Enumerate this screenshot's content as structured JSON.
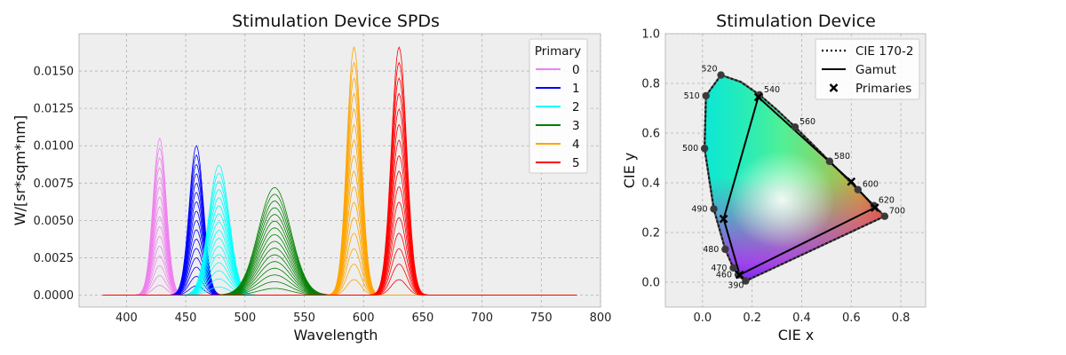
{
  "chart_data": [
    {
      "type": "line",
      "title": "Stimulation Device SPDs",
      "xlabel": "Wavelength",
      "ylabel": "W/[sr*sqm*nm]",
      "xlim": [
        360,
        800
      ],
      "ylim": [
        -0.0008,
        0.0175
      ],
      "xticks": [
        400,
        450,
        500,
        550,
        600,
        650,
        700,
        750,
        800
      ],
      "yticks": [
        0.0,
        0.0025,
        0.005,
        0.0075,
        0.01,
        0.0125,
        0.015
      ],
      "ytick_labels": [
        "0.0000",
        "0.0025",
        "0.0050",
        "0.0075",
        "0.0100",
        "0.0125",
        "0.0150"
      ],
      "grid": true,
      "legend": {
        "title": "Primary",
        "placement": "top-right"
      },
      "x_range": [
        380,
        780
      ],
      "levels_per_primary": 16,
      "series": [
        {
          "name": "0",
          "color": "#ee82ee",
          "peak_wavelength": 428,
          "peak_value": 0.0105,
          "fwhm": 13
        },
        {
          "name": "1",
          "color": "#0000ff",
          "peak_wavelength": 459,
          "peak_value": 0.01,
          "fwhm": 14
        },
        {
          "name": "2",
          "color": "#00ffff",
          "peak_wavelength": 478,
          "peak_value": 0.0087,
          "fwhm": 20
        },
        {
          "name": "3",
          "color": "#008000",
          "peak_wavelength": 525,
          "peak_value": 0.0072,
          "fwhm": 32
        },
        {
          "name": "4",
          "color": "#ffa500",
          "peak_wavelength": 592,
          "peak_value": 0.0166,
          "fwhm": 14
        },
        {
          "name": "5",
          "color": "#ff0000",
          "peak_wavelength": 630,
          "peak_value": 0.0166,
          "fwhm": 15
        }
      ]
    },
    {
      "type": "scatter",
      "title": "Stimulation Device",
      "xlabel": "CIE x",
      "ylabel": "CIE y",
      "xlim": [
        -0.15,
        0.9
      ],
      "ylim": [
        -0.1,
        1.0
      ],
      "xticks": [
        0.0,
        0.2,
        0.4,
        0.6,
        0.8
      ],
      "xtick_labels": [
        "0.0",
        "0.2",
        "0.4",
        "0.6",
        "0.8"
      ],
      "yticks": [
        0.0,
        0.2,
        0.4,
        0.6,
        0.8,
        1.0
      ],
      "ytick_labels": [
        "0.0",
        "0.2",
        "0.4",
        "0.6",
        "0.8",
        "1.0"
      ],
      "grid": true,
      "legend": {
        "placement": "top-right",
        "entries": [
          "CIE 170-2",
          "Gamut",
          "Primaries"
        ]
      },
      "spectral_locus": [
        [
          0.1741,
          0.005
        ],
        [
          0.1733,
          0.0048
        ],
        [
          0.1726,
          0.0048
        ],
        [
          0.1714,
          0.0051
        ],
        [
          0.1689,
          0.0069
        ],
        [
          0.1644,
          0.0109
        ],
        [
          0.1566,
          0.0177
        ],
        [
          0.144,
          0.0297
        ],
        [
          0.1241,
          0.0578
        ],
        [
          0.0913,
          0.1327
        ],
        [
          0.0454,
          0.295
        ],
        [
          0.0082,
          0.5384
        ],
        [
          0.0139,
          0.7502
        ],
        [
          0.0743,
          0.8338
        ],
        [
          0.1547,
          0.8059
        ],
        [
          0.2296,
          0.7543
        ],
        [
          0.3016,
          0.6923
        ],
        [
          0.3731,
          0.6245
        ],
        [
          0.4441,
          0.5547
        ],
        [
          0.5125,
          0.4866
        ],
        [
          0.5752,
          0.4242
        ],
        [
          0.627,
          0.3725
        ],
        [
          0.6658,
          0.334
        ],
        [
          0.6915,
          0.3083
        ],
        [
          0.7079,
          0.292
        ],
        [
          0.7347,
          0.2653
        ]
      ],
      "locus_labels": [
        {
          "nm": "390",
          "x": 0.1741,
          "y": 0.005,
          "side": "left-below"
        },
        {
          "nm": "460",
          "x": 0.144,
          "y": 0.0297,
          "side": "left"
        },
        {
          "nm": "470",
          "x": 0.1241,
          "y": 0.0578,
          "side": "left"
        },
        {
          "nm": "480",
          "x": 0.0913,
          "y": 0.1327,
          "side": "left"
        },
        {
          "nm": "490",
          "x": 0.0454,
          "y": 0.295,
          "side": "left"
        },
        {
          "nm": "500",
          "x": 0.0082,
          "y": 0.5384,
          "side": "left"
        },
        {
          "nm": "510",
          "x": 0.0139,
          "y": 0.7502,
          "side": "left"
        },
        {
          "nm": "520",
          "x": 0.0743,
          "y": 0.8338,
          "side": "left-above"
        },
        {
          "nm": "540",
          "x": 0.2296,
          "y": 0.7543,
          "side": "right"
        },
        {
          "nm": "560",
          "x": 0.3731,
          "y": 0.6245,
          "side": "right"
        },
        {
          "nm": "580",
          "x": 0.5125,
          "y": 0.4866,
          "side": "right"
        },
        {
          "nm": "600",
          "x": 0.627,
          "y": 0.3725,
          "side": "right"
        },
        {
          "nm": "620",
          "x": 0.6915,
          "y": 0.3083,
          "side": "right"
        },
        {
          "nm": "700",
          "x": 0.7347,
          "y": 0.2653,
          "side": "right"
        }
      ],
      "primaries": [
        {
          "x": 0.15,
          "y": 0.03
        },
        {
          "x": 0.085,
          "y": 0.255
        },
        {
          "x": 0.225,
          "y": 0.745
        },
        {
          "x": 0.6,
          "y": 0.405
        },
        {
          "x": 0.695,
          "y": 0.3
        }
      ],
      "gamut_order": [
        0,
        1,
        2,
        3,
        4
      ]
    }
  ]
}
